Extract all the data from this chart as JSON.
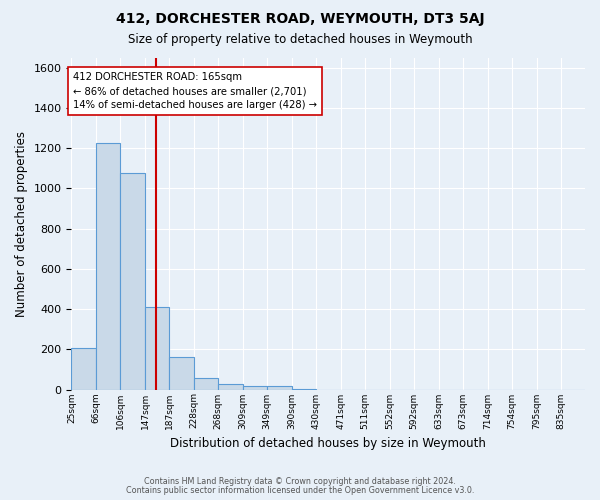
{
  "title": "412, DORCHESTER ROAD, WEYMOUTH, DT3 5AJ",
  "subtitle": "Size of property relative to detached houses in Weymouth",
  "xlabel": "Distribution of detached houses by size in Weymouth",
  "ylabel": "Number of detached properties",
  "footer_lines": [
    "Contains HM Land Registry data © Crown copyright and database right 2024.",
    "Contains public sector information licensed under the Open Government Licence v3.0."
  ],
  "bin_labels": [
    "25sqm",
    "66sqm",
    "106sqm",
    "147sqm",
    "187sqm",
    "228sqm",
    "268sqm",
    "309sqm",
    "349sqm",
    "390sqm",
    "430sqm",
    "471sqm",
    "511sqm",
    "552sqm",
    "592sqm",
    "633sqm",
    "673sqm",
    "714sqm",
    "754sqm",
    "795sqm",
    "835sqm"
  ],
  "bar_values": [
    205,
    1225,
    1075,
    410,
    160,
    55,
    25,
    15,
    15,
    5,
    0,
    0,
    0,
    0,
    0,
    0,
    0,
    0,
    0,
    0,
    0
  ],
  "bar_color": "#c9d9e8",
  "bar_edge_color": "#5b9bd5",
  "property_label": "412 DORCHESTER ROAD: 165sqm",
  "annotation_line1": "← 86% of detached houses are smaller (2,701)",
  "annotation_line2": "14% of semi-detached houses are larger (428) →",
  "vline_color": "#cc0000",
  "vline_x": 165,
  "ylim": [
    0,
    1650
  ],
  "yticks": [
    0,
    200,
    400,
    600,
    800,
    1000,
    1200,
    1400,
    1600
  ],
  "bg_color": "#e8f0f8",
  "plot_bg_color": "#e8f0f8",
  "annotation_box_color": "white",
  "annotation_box_edge": "#cc0000"
}
